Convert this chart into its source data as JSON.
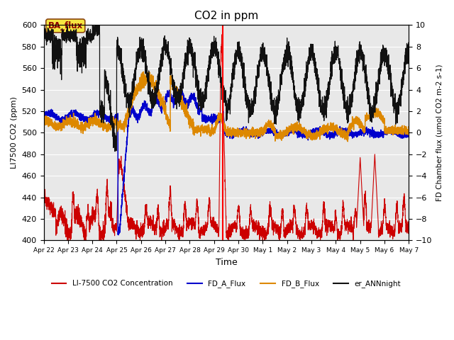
{
  "title": "CO2 in ppm",
  "ylabel_left": "LI7500 CO2 (ppm)",
  "ylabel_right": "FD Chamber flux (umol CO2 m-2 s-1)",
  "xlabel": "Time",
  "ylim_left": [
    400,
    600
  ],
  "ylim_right": [
    -10,
    10
  ],
  "bg_color": "#e8e8e8",
  "annotation_text": "BA_flux",
  "xtick_labels": [
    "Apr 22",
    "Apr 23",
    "Apr 24",
    "Apr 25",
    "Apr 26",
    "Apr 27",
    "Apr 28",
    "Apr 29",
    "Apr 30",
    "May 1",
    "May 2",
    "May 3",
    "May 4",
    "May 5",
    "May 6",
    "May 7"
  ],
  "yticks_left": [
    400,
    420,
    440,
    460,
    480,
    500,
    520,
    540,
    560,
    580,
    600
  ],
  "yticks_right": [
    -10,
    -8,
    -6,
    -4,
    -2,
    0,
    2,
    4,
    6,
    8,
    10
  ],
  "red_vline_x": 7.35,
  "legend_labels": [
    "LI-7500 CO2 Concentration",
    "FD_A_Flux",
    "FD_B_Flux",
    "er_ANNnight"
  ],
  "legend_colors": [
    "#cc0000",
    "#0000cc",
    "#dd8800",
    "#111111"
  ]
}
